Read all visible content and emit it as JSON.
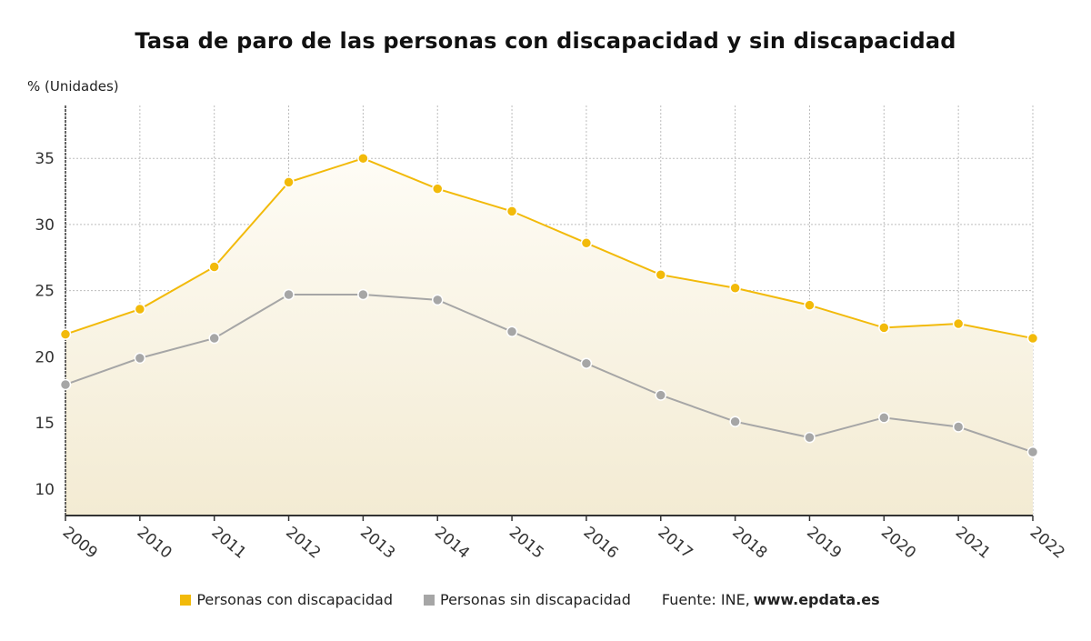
{
  "title": "Tasa de paro de las personas con discapacidad y sin discapacidad",
  "unit_label": "% (Unidades)",
  "source": {
    "label": "Fuente: INE,",
    "site": "www.epdata.es"
  },
  "colors": {
    "series1": "#F2BA0A",
    "series2": "#A6A6A6",
    "grid": "#BDBDBD",
    "axis": "#333333"
  },
  "chart_data": {
    "type": "line",
    "title": "Tasa de paro de las personas con discapacidad y sin discapacidad",
    "ylabel": "% (Unidades)",
    "xlabel": "",
    "x": [
      "2009",
      "2010",
      "2011",
      "2012",
      "2013",
      "2014",
      "2015",
      "2016",
      "2017",
      "2018",
      "2019",
      "2020",
      "2021",
      "2022"
    ],
    "yticks": [
      10,
      15,
      20,
      25,
      30,
      35
    ],
    "ylim": [
      8,
      39
    ],
    "grid": true,
    "legend_position": "bottom",
    "series": [
      {
        "name": "Personas con discapacidad",
        "values": [
          21.7,
          23.6,
          26.8,
          33.2,
          35.0,
          32.7,
          31.0,
          28.6,
          26.2,
          25.2,
          23.9,
          22.2,
          22.5,
          21.4
        ]
      },
      {
        "name": "Personas sin discapacidad",
        "values": [
          17.9,
          19.9,
          21.4,
          24.7,
          24.7,
          24.3,
          21.9,
          19.5,
          17.1,
          15.1,
          13.9,
          15.4,
          14.7,
          12.8
        ]
      }
    ]
  }
}
